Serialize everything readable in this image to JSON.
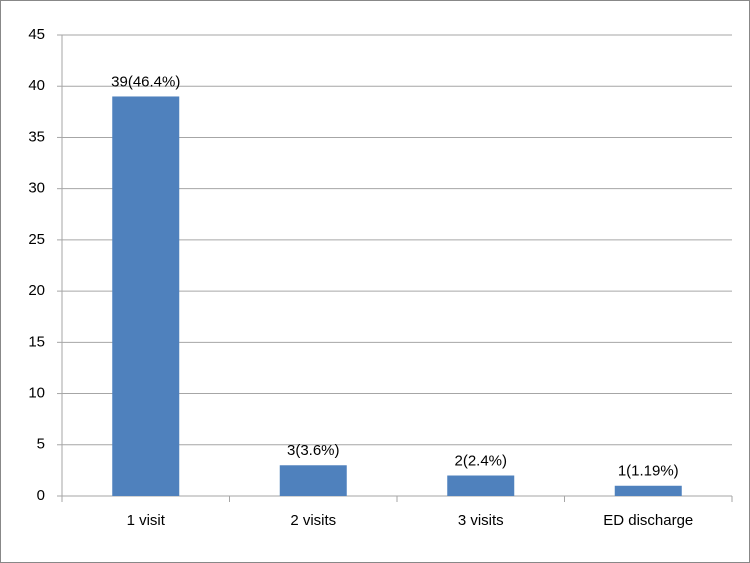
{
  "chart_data": {
    "type": "bar",
    "categories": [
      "1 visit",
      "2 visits",
      "3 visits",
      "ED discharge"
    ],
    "values": [
      39,
      3,
      2,
      1
    ],
    "value_labels": [
      "39(46.4%)",
      "3(3.6%)",
      "2(2.4%)",
      "1(1.19%)"
    ],
    "color": "#4f81bd",
    "ylim": [
      0,
      45
    ],
    "yticks": [
      0,
      5,
      10,
      15,
      20,
      25,
      30,
      35,
      40,
      45
    ],
    "grid": true
  }
}
